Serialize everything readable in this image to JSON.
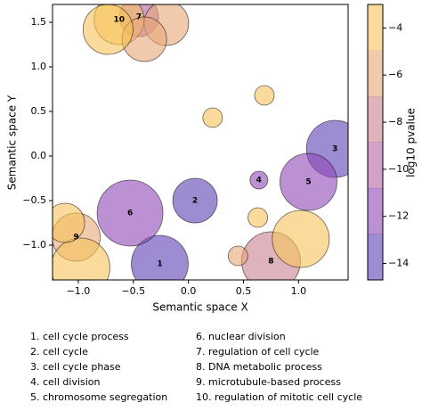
{
  "chart_data": {
    "type": "bubble",
    "x_label": "Semantic space X",
    "y_label": "Semantic space Y",
    "colorbar_label": "log10 pvalue",
    "x": [
      -0.26,
      0.06,
      1.33,
      0.64,
      1.09,
      -0.53,
      -0.45,
      0.75,
      -1.02,
      -0.63,
      -0.98,
      -1.12,
      1.02,
      0.63,
      0.45,
      0.22,
      0.69,
      -0.2,
      -0.4,
      -0.73
    ],
    "y": [
      -1.21,
      -0.5,
      0.08,
      -0.27,
      -0.29,
      -0.64,
      1.56,
      -1.18,
      -0.91,
      1.53,
      -1.25,
      -0.75,
      -0.93,
      -0.69,
      -1.12,
      0.43,
      0.68,
      1.49,
      1.31,
      1.42
    ],
    "sizes": [
      32,
      25,
      32,
      10,
      32,
      37,
      22,
      33,
      27,
      28,
      33,
      22,
      32,
      11,
      11,
      11,
      11,
      25,
      25,
      28
    ],
    "pvalues": [
      -14,
      -14,
      -14.5,
      -12.5,
      -12,
      -11,
      -9,
      -8,
      -6,
      -4,
      -3.5,
      -4,
      -4,
      -4,
      -6,
      -4,
      -4,
      -6,
      -6,
      -4
    ],
    "labels": [
      "1",
      "2",
      "3",
      "4",
      "5",
      "6",
      "7",
      "8",
      "9",
      "10",
      null,
      null,
      null,
      null,
      null,
      null,
      null,
      null,
      null,
      null
    ],
    "xlim": [
      -1.234,
      1.45
    ],
    "ylim": [
      -1.39,
      1.7
    ],
    "clim": [
      -14.7,
      -3
    ],
    "xticks": [
      {
        "value": -1,
        "label": "−1.0"
      },
      {
        "value": -0.5,
        "label": "−0.5"
      },
      {
        "value": 0,
        "label": "0.0"
      },
      0.5,
      {
        "value": 1,
        "label": "1.0"
      }
    ],
    "yticks": [
      {
        "value": -1,
        "label": "−1.0"
      },
      {
        "value": -0.5,
        "label": "−0.5"
      },
      {
        "value": 0,
        "label": "0.0"
      },
      0.5,
      {
        "value": 1,
        "label": "1.0"
      },
      1.5
    ],
    "cticks": [
      {
        "value": -4,
        "label": "−4"
      },
      {
        "value": -6,
        "label": "−6"
      },
      {
        "value": -8,
        "label": "−8"
      },
      {
        "value": -10,
        "label": "−10"
      },
      {
        "value": -12,
        "label": "−12"
      },
      {
        "value": -14,
        "label": "−14"
      }
    ],
    "colormap": [
      "#f7c35a",
      "#e8a778",
      "#c9808e",
      "#b263a5",
      "#8f48b8",
      "#5b3fb4"
    ],
    "legend": [
      "1. cell cycle process",
      "2. cell cycle",
      "3. cell cycle phase",
      "4. cell division",
      "5. chromosome segregation",
      "6. nuclear division",
      "7. regulation of cell cycle",
      "8. DNA metabolic process",
      "9. microtubule-based process",
      "10. regulation of mitotic cell cycle"
    ]
  }
}
